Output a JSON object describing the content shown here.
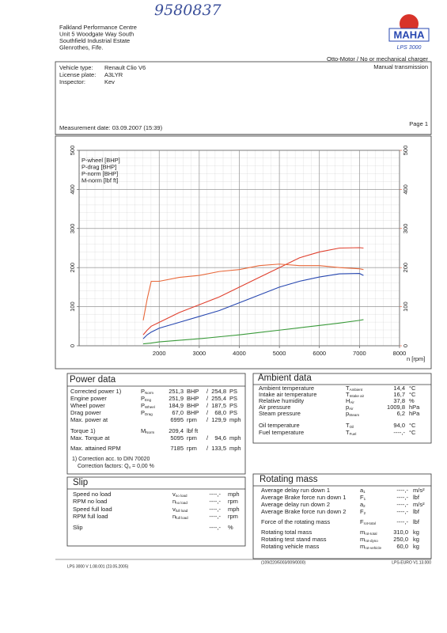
{
  "header": {
    "handwritten": "9580837",
    "address": [
      "Falkland Performance Centre",
      "Unit 5 Woodgate Way South",
      "Southfield Industrial Estate",
      "Glenrothes, Fife."
    ],
    "logo": "MAHA",
    "logo_sub": "LPS 3000"
  },
  "vehicle": {
    "rows": [
      [
        "Vehicle type:",
        "Renault Clio V6"
      ],
      [
        "License plate:",
        "A3LYR"
      ],
      [
        "Inspector:",
        "Kev"
      ]
    ],
    "right": [
      "Otto-Motor / No or mechanical charger",
      "Manual transmission"
    ]
  },
  "measurement": {
    "label": "Measurement date: 03.09.2007 (15:39)",
    "page": "Page 1"
  },
  "chart_data": {
    "type": "line",
    "x_label": "n [rpm]",
    "x": [
      1600,
      1700,
      1800,
      2000,
      2500,
      3000,
      3500,
      4000,
      4500,
      5000,
      5500,
      6000,
      6500,
      7000,
      7100
    ],
    "xlim": [
      0,
      8000
    ],
    "xticks": [
      2000,
      3000,
      4000,
      5000,
      6000,
      7000,
      8000
    ],
    "ylim": [
      0,
      500
    ],
    "yticks": [
      0,
      100,
      200,
      300,
      400,
      500
    ],
    "y2lim": [
      0,
      500
    ],
    "y2ticks": [
      0,
      100,
      200,
      300,
      400,
      500
    ],
    "y2color": "#e0502e",
    "grid": true,
    "legend": "upper left",
    "series": [
      {
        "name": "P-wheel [BHP]",
        "color": "#2747b0",
        "values": [
          18,
          28,
          35,
          45,
          60,
          75,
          90,
          110,
          130,
          150,
          165,
          176,
          184,
          185,
          180
        ]
      },
      {
        "name": "P-drag [BHP]",
        "color": "#3a9a3a",
        "values": [
          5,
          6,
          7,
          10,
          14,
          18,
          23,
          28,
          34,
          40,
          46,
          52,
          58,
          65,
          67
        ]
      },
      {
        "name": "P-norm [BHP]",
        "color": "#e0402e",
        "values": [
          28,
          40,
          50,
          60,
          85,
          105,
          125,
          150,
          175,
          200,
          225,
          240,
          250,
          251,
          250
        ]
      },
      {
        "name": "M-norm [lbf ft]",
        "color": "#e8683a",
        "axis": "y2",
        "values": [
          65,
          120,
          165,
          165,
          175,
          180,
          190,
          195,
          205,
          209,
          205,
          205,
          200,
          197,
          195
        ]
      }
    ]
  },
  "power": {
    "title": "Power data",
    "rows": [
      {
        "label": "Corrected power 1)",
        "sym": "P",
        "sub": "Norm",
        "v1": "251,3",
        "u1": "BHP",
        "sep": "/",
        "v2": "254,8",
        "u2": "PS",
        "color": "#e0402e"
      },
      {
        "label": "Engine power",
        "sym": "P",
        "sub": "Eng",
        "v1": "251,9",
        "u1": "BHP",
        "sep": "/",
        "v2": "255,4",
        "u2": "PS",
        "color": "#e0402e"
      },
      {
        "label": "Wheel power",
        "sym": "P",
        "sub": "Wheel",
        "v1": "184,9",
        "u1": "BHP",
        "sep": "/",
        "v2": "187,5",
        "u2": "PS",
        "color": "#2747b0"
      },
      {
        "label": "Drag power",
        "sym": "P",
        "sub": "Drag",
        "v1": "67,0",
        "u1": "BHP",
        "sep": "/",
        "v2": "68,0",
        "u2": "PS",
        "color": "#3a9a3a"
      },
      {
        "label": "Max. power at",
        "v1": "6995",
        "u1": "rpm",
        "sep": "/",
        "v2": "129,9",
        "u2": "mph",
        "color": "#222222"
      },
      {
        "label": "Torque 1)",
        "sym": "M",
        "sub": "Norm",
        "v1": "209,4",
        "u1": "lbf ft",
        "color": "#e0402e"
      },
      {
        "label": "Max. Torque at",
        "v1": "5095",
        "u1": "rpm",
        "sep": "/",
        "v2": "94,6",
        "u2": "mph",
        "color": "#222222"
      },
      {
        "label": "Max. attained RPM",
        "v1": "7185",
        "u1": "rpm",
        "sep": "/",
        "v2": "133,5",
        "u2": "mph",
        "color": "#222222"
      }
    ],
    "note": "1) Correction acc. to DIN 70020",
    "factors": {
      "text": "Correction factors: Q",
      "sub": "o",
      "rest": " = 0,00 %"
    }
  },
  "ambient": {
    "title": "Ambient data",
    "rows": [
      {
        "label": "Ambient temperature",
        "sym": "T",
        "sub": "Ambient",
        "value": "14,4",
        "unit": "°C"
      },
      {
        "label": "Intake air temperature",
        "sym": "T",
        "sub": "Intake air",
        "value": "16,7",
        "unit": "°C"
      },
      {
        "label": "Relative humidity",
        "sym": "H",
        "sub": "Air",
        "value": "37,8",
        "unit": "%"
      },
      {
        "label": "Air pressure",
        "sym": "p",
        "sub": "Air",
        "value": "1009,8",
        "unit": "hPa"
      },
      {
        "label": "Steam pressure",
        "sym": "p",
        "sub": "Steam",
        "value": "6,2",
        "unit": "hPa"
      },
      {
        "label": "Oil temperature",
        "sym": "T",
        "sub": "Oil",
        "value": "94,0",
        "unit": "°C"
      },
      {
        "label": "Fuel temperature",
        "sym": "T",
        "sub": "Fuel",
        "value": "----,-",
        "unit": "°C"
      }
    ]
  },
  "slip": {
    "title": "Slip",
    "rows": [
      {
        "label": "Speed no load",
        "sym": "v",
        "sub": "no load",
        "value": "----,-",
        "unit": "mph"
      },
      {
        "label": "RPM no load",
        "sym": "n",
        "sub": "no load",
        "value": "----,-",
        "unit": "rpm"
      },
      {
        "label": "Speed full load",
        "sym": "v",
        "sub": "full load",
        "value": "----,-",
        "unit": "mph"
      },
      {
        "label": "RPM full load",
        "sym": "n",
        "sub": "full load",
        "value": "----,-",
        "unit": "rpm"
      },
      {
        "label": "Slip",
        "value": "----,-",
        "unit": "%"
      }
    ]
  },
  "rotating": {
    "title": "Rotating mass",
    "rows": [
      {
        "label": "Average delay run down 1",
        "sym": "a",
        "sub": "1",
        "value": "----,-",
        "unit": "m/s²"
      },
      {
        "label": "Average Brake force run down 1",
        "sym": "F",
        "sub": "1",
        "value": "----,-",
        "unit": "lbf"
      },
      {
        "label": "Average delay run down 2",
        "sym": "a",
        "sub": "2",
        "value": "----,-",
        "unit": "m/s²"
      },
      {
        "label": "Average Brake force run down 2",
        "sym": "F",
        "sub": "2",
        "value": "----,-",
        "unit": "lbf"
      },
      {
        "label": "Force of the rotating mass",
        "sym": "F",
        "sub": "rot-total",
        "value": "----,-",
        "unit": "lbf"
      },
      {
        "label": "Rotating total mass",
        "sym": "m",
        "sub": "rot-total",
        "value": "310,0",
        "unit": "kg"
      },
      {
        "label": "Rotating test stand mass",
        "sym": "m",
        "sub": "rot-dyno",
        "value": "250,0",
        "unit": "kg"
      },
      {
        "label": "Rotating vehicle mass",
        "sym": "m",
        "sub": "rot-vehicle",
        "value": "60,0",
        "unit": "kg"
      }
    ]
  },
  "footer": {
    "left": "LPS 3000 V 1.08.001 (23.05.2005)",
    "center": "(109/220/5003/009/0000)",
    "right": "LPS-EURO V1.13.000"
  }
}
